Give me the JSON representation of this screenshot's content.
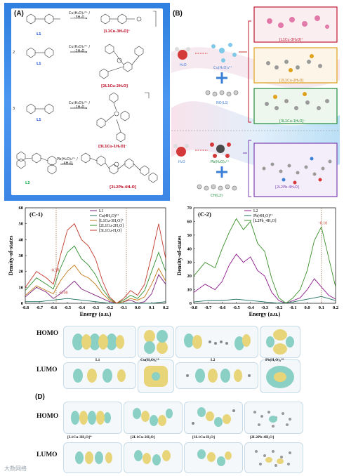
{
  "panel_a": {
    "tag": "(A)",
    "rows": [
      {
        "ligand": "L1",
        "condition": "Cu(H₂O)₄²⁺ / -3H₂O",
        "product": "[L1Cu-3H₂O]⁺"
      },
      {
        "ligand": "L1",
        "condition": "Cu(H₂O)₄²⁺ / -2H₂O",
        "product": "[2L1Cu-2H₂O]"
      },
      {
        "ligand": "L1",
        "condition": "Cu(H₂O)₄²⁺ / -1H₂O",
        "product": "[3L1Cu-1H₂O]⁻"
      },
      {
        "ligand": "L2",
        "condition": "Pb(H₂O)₄²⁺ / -4H₂O",
        "product": "[2L2Pb-4H₂O]"
      }
    ],
    "prefix_2": "2",
    "prefix_3": "3"
  },
  "panel_b": {
    "tag": "(B)",
    "h2o": "H₂O",
    "cu_label": "Cu(H₂O)₄²⁺",
    "pb_label": "Pb(H₂O)₄²⁺",
    "l1_label": "NO(L1)",
    "l2_label": "CH(L2)",
    "products": [
      "[L1Cu-3H₂O]⁺",
      "[2L1Cu-2H₂O]",
      "[3L1Cu-1H₂O]⁻",
      "[2L2Pb-4H₂O]"
    ]
  },
  "chart_c1": {
    "chart_data": {
      "type": "line",
      "tag": "(C-1)",
      "xlabel": "Energy (a.u.)",
      "ylabel": "Density-of-states",
      "xlim": [
        -0.8,
        0.2
      ],
      "ylim": [
        0,
        60
      ],
      "xticks": [
        "-0.8",
        "-0.7",
        "-0.6",
        "-0.5",
        "-0.4",
        "-0.3",
        "-0.2",
        "-0.1",
        "0.0",
        "0.1",
        "0.2"
      ],
      "yticks": [
        "0",
        "10",
        "20",
        "30",
        "40",
        "50",
        "60"
      ],
      "annotations": [
        "-0.58",
        "-0.08"
      ],
      "series": [
        {
          "name": "L1",
          "color": "#7b1f7a",
          "x": [
            -0.8,
            -0.72,
            -0.65,
            -0.6,
            -0.55,
            -0.5,
            -0.45,
            -0.4,
            -0.35,
            -0.3,
            -0.25,
            -0.2,
            -0.15,
            -0.1,
            -0.05,
            0.0,
            0.05,
            0.1,
            0.15,
            0.2
          ],
          "y": [
            4,
            10,
            7,
            3,
            6,
            10,
            14,
            9,
            7,
            5,
            3,
            1,
            0,
            1,
            2,
            0,
            1,
            6,
            18,
            12
          ]
        },
        {
          "name": "Cu(4H₂O)²⁺",
          "color": "#1f6f5f",
          "x": [
            -0.8,
            -0.7,
            -0.6,
            -0.5,
            -0.4,
            -0.3,
            -0.2,
            -0.1,
            0.0,
            0.1,
            0.2
          ],
          "y": [
            1,
            1,
            2,
            3,
            2,
            1,
            0,
            0,
            0,
            0,
            1
          ]
        },
        {
          "name": "[L1Cu-3H₂O]⁺",
          "color": "#c27a1a",
          "x": [
            -0.8,
            -0.72,
            -0.65,
            -0.6,
            -0.55,
            -0.5,
            -0.45,
            -0.4,
            -0.35,
            -0.3,
            -0.25,
            -0.2,
            -0.15,
            -0.1,
            -0.05,
            0.0,
            0.05,
            0.1,
            0.15,
            0.2
          ],
          "y": [
            5,
            11,
            8,
            6,
            14,
            20,
            24,
            18,
            16,
            12,
            6,
            2,
            0,
            1,
            3,
            2,
            4,
            12,
            22,
            14
          ]
        },
        {
          "name": "[2L1Cu-2H₂O]",
          "color": "#2f8f2f",
          "x": [
            -0.8,
            -0.72,
            -0.65,
            -0.6,
            -0.55,
            -0.5,
            -0.45,
            -0.4,
            -0.35,
            -0.3,
            -0.25,
            -0.2,
            -0.15,
            -0.1,
            -0.05,
            0.0,
            0.05,
            0.1,
            0.15,
            0.2
          ],
          "y": [
            8,
            16,
            12,
            9,
            22,
            32,
            36,
            28,
            24,
            18,
            9,
            3,
            0,
            2,
            5,
            3,
            8,
            20,
            32,
            20
          ]
        },
        {
          "name": "[3L1Cu-H₂O]",
          "color": "#c0392b",
          "x": [
            -0.8,
            -0.72,
            -0.65,
            -0.6,
            -0.55,
            -0.5,
            -0.45,
            -0.4,
            -0.35,
            -0.3,
            -0.25,
            -0.2,
            -0.15,
            -0.1,
            -0.05,
            0.0,
            0.05,
            0.1,
            0.15,
            0.2
          ],
          "y": [
            10,
            20,
            16,
            12,
            30,
            46,
            50,
            40,
            36,
            28,
            14,
            4,
            0,
            3,
            8,
            5,
            12,
            30,
            50,
            28
          ]
        }
      ]
    }
  },
  "chart_c2": {
    "chart_data": {
      "type": "line",
      "tag": "(C-2)",
      "xlabel": "Energy (a.u.)",
      "ylabel": "Density-of-states",
      "xlim": [
        -0.8,
        0.2
      ],
      "ylim": [
        0,
        70
      ],
      "xticks": [
        "-0.8",
        "-0.7",
        "-0.6",
        "-0.5",
        "-0.4",
        "-0.3",
        "-0.2",
        "-0.1",
        "0.0",
        "0.1",
        "0.2"
      ],
      "yticks": [
        "0",
        "10",
        "20",
        "30",
        "40",
        "50",
        "60",
        "70"
      ],
      "annotations": [
        "-0.10"
      ],
      "series": [
        {
          "name": "L2",
          "color": "#8e1a8e",
          "x": [
            -0.8,
            -0.72,
            -0.65,
            -0.6,
            -0.55,
            -0.5,
            -0.45,
            -0.4,
            -0.35,
            -0.3,
            -0.25,
            -0.2,
            -0.15,
            -0.1,
            -0.05,
            0.0,
            0.05,
            0.1,
            0.15,
            0.2
          ],
          "y": [
            8,
            14,
            10,
            16,
            28,
            36,
            30,
            34,
            24,
            20,
            8,
            2,
            0,
            2,
            4,
            10,
            18,
            12,
            6,
            3
          ]
        },
        {
          "name": "Pb(4H₂O)²⁺",
          "color": "#1f6f5f",
          "x": [
            -0.8,
            -0.7,
            -0.6,
            -0.5,
            -0.4,
            -0.3,
            -0.2,
            -0.1,
            0.0,
            0.1,
            0.2
          ],
          "y": [
            1,
            2,
            2,
            3,
            2,
            1,
            0,
            1,
            3,
            5,
            2
          ]
        },
        {
          "name": "[L2Pb_4H₂O]",
          "color": "#3a8f2a",
          "x": [
            -0.8,
            -0.72,
            -0.65,
            -0.6,
            -0.55,
            -0.5,
            -0.45,
            -0.4,
            -0.35,
            -0.3,
            -0.25,
            -0.2,
            -0.15,
            -0.1,
            -0.05,
            0.0,
            0.05,
            0.1,
            0.15,
            0.2
          ],
          "y": [
            20,
            30,
            26,
            40,
            52,
            62,
            54,
            60,
            44,
            38,
            18,
            4,
            0,
            4,
            10,
            24,
            46,
            56,
            34,
            12
          ]
        }
      ]
    }
  },
  "orbitals_top": {
    "homo": "HOMO",
    "lumo": "LUMO",
    "captions": [
      "L1",
      "Cu(H₂O)₄²⁺",
      "L2",
      "Pb(H₂O)₄²⁺"
    ]
  },
  "orbitals_bottom": {
    "tag": "(D)",
    "homo": "HOMO",
    "lumo": "LUMO",
    "captions": [
      "[L1Cu-3H₂O]⁺",
      "[2L1Cu-2H₂O]",
      "[3L1Cu-H₂O]",
      "[2L2Pb-4H₂O]"
    ]
  },
  "watermark": "大数网络"
}
